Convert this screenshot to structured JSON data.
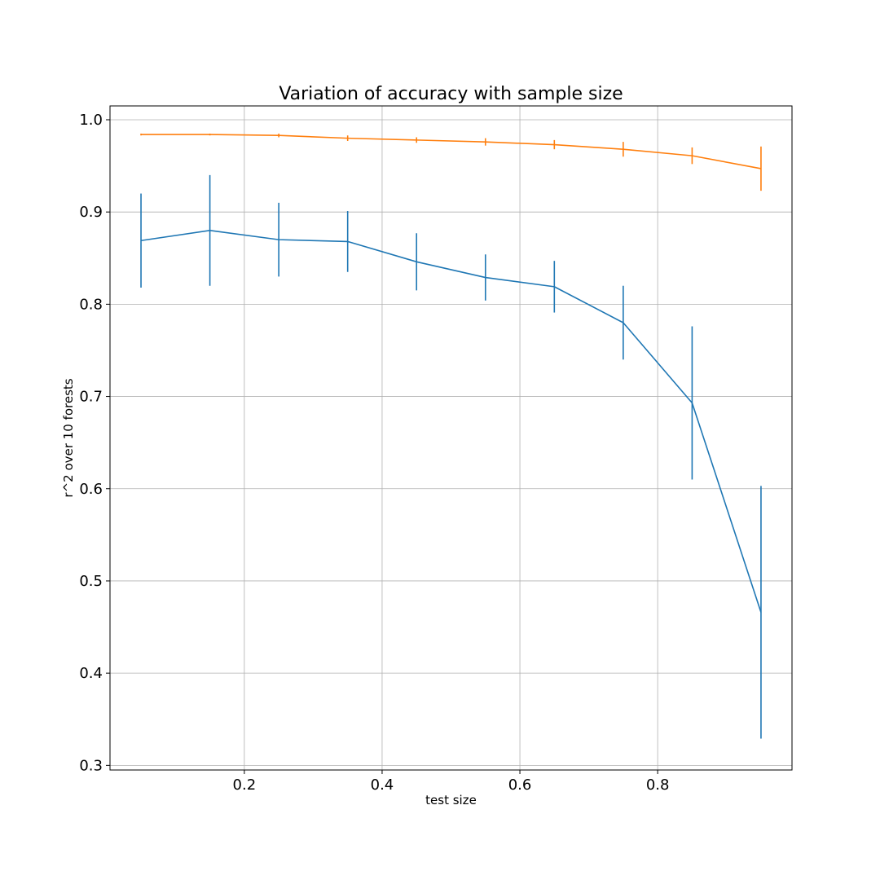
{
  "chart_data": {
    "type": "line",
    "title": "Variation of accuracy with sample size",
    "xlabel": "test size",
    "ylabel": "r^2 over 10 forests",
    "xlim": [
      0.005,
      0.995
    ],
    "ylim": [
      0.295,
      1.015
    ],
    "xticks": [
      0.2,
      0.4,
      0.6,
      0.8
    ],
    "xtick_labels": [
      "0.2",
      "0.4",
      "0.6",
      "0.8"
    ],
    "yticks": [
      0.3,
      0.4,
      0.5,
      0.6,
      0.7,
      0.8,
      0.9,
      1.0
    ],
    "ytick_labels": [
      "0.3",
      "0.4",
      "0.5",
      "0.6",
      "0.7",
      "0.8",
      "0.9",
      "1.0"
    ],
    "grid": true,
    "x": [
      0.05,
      0.15,
      0.25,
      0.35,
      0.45,
      0.55,
      0.65,
      0.75,
      0.85,
      0.95
    ],
    "series": [
      {
        "color": "#1f77b4",
        "values": [
          0.869,
          0.88,
          0.87,
          0.868,
          0.846,
          0.829,
          0.819,
          0.78,
          0.693,
          0.466
        ],
        "errors": [
          0.051,
          0.06,
          0.04,
          0.033,
          0.031,
          0.025,
          0.028,
          0.04,
          0.083,
          0.137
        ]
      },
      {
        "color": "#ff7f0e",
        "values": [
          0.984,
          0.984,
          0.983,
          0.98,
          0.978,
          0.976,
          0.973,
          0.968,
          0.961,
          0.947
        ],
        "errors": [
          0.001,
          0.001,
          0.002,
          0.003,
          0.003,
          0.004,
          0.005,
          0.008,
          0.009,
          0.024
        ]
      }
    ]
  }
}
